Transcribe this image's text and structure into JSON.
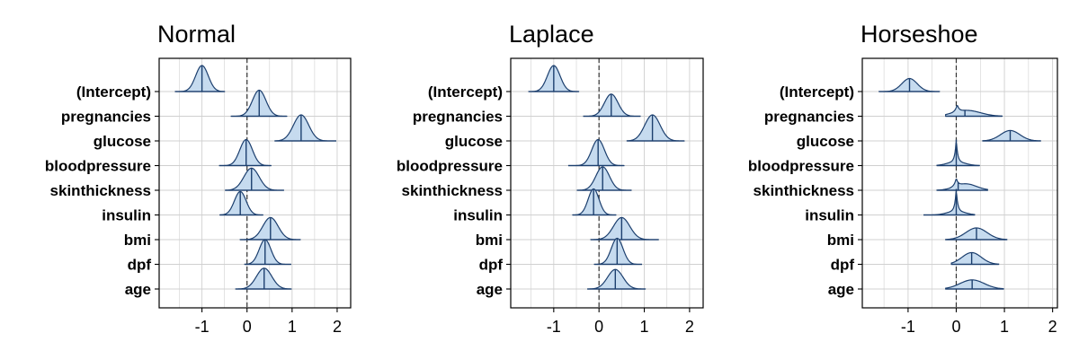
{
  "chart_data": [
    {
      "type": "area",
      "subtype": "ridgeline",
      "title": "Normal",
      "categories": [
        "(Intercept)",
        "pregnancies",
        "glucose",
        "bloodpressure",
        "skinthickness",
        "insulin",
        "bmi",
        "dpf",
        "age"
      ],
      "x_ticks": [
        "-1",
        "0",
        "1",
        "2"
      ],
      "xlim": [
        -1.95,
        2.3
      ],
      "reference_line_x": 0,
      "grid": true,
      "series": [
        {
          "category": "(Intercept)",
          "center": -1.0,
          "spread": 0.14,
          "range": [
            -1.6,
            -0.5
          ],
          "height": 1.0
        },
        {
          "category": "pregnancies",
          "center": 0.27,
          "spread": 0.15,
          "range": [
            -0.35,
            0.88
          ],
          "height": 1.0
        },
        {
          "category": "glucose",
          "center": 1.2,
          "spread": 0.17,
          "range": [
            0.62,
            1.98
          ],
          "height": 1.0
        },
        {
          "category": "bloodpressure",
          "center": -0.02,
          "spread": 0.14,
          "range": [
            -0.62,
            0.53
          ],
          "height": 1.0
        },
        {
          "category": "skinthickness",
          "center": 0.1,
          "spread": 0.17,
          "range": [
            -0.48,
            0.82
          ],
          "height": 0.85
        },
        {
          "category": "insulin",
          "center": -0.15,
          "spread": 0.13,
          "range": [
            -0.6,
            0.35
          ],
          "height": 0.9
        },
        {
          "category": "bmi",
          "center": 0.52,
          "spread": 0.17,
          "range": [
            -0.15,
            1.18
          ],
          "height": 0.85
        },
        {
          "category": "dpf",
          "center": 0.4,
          "spread": 0.13,
          "range": [
            -0.05,
            0.98
          ],
          "height": 0.95
        },
        {
          "category": "age",
          "center": 0.38,
          "spread": 0.17,
          "range": [
            -0.25,
            0.98
          ],
          "height": 0.8
        }
      ]
    },
    {
      "type": "area",
      "subtype": "ridgeline",
      "title": "Laplace",
      "categories": [
        "(Intercept)",
        "pregnancies",
        "glucose",
        "bloodpressure",
        "skinthickness",
        "insulin",
        "bmi",
        "dpf",
        "age"
      ],
      "x_ticks": [
        "-1",
        "0",
        "1",
        "2"
      ],
      "xlim": [
        -1.95,
        2.3
      ],
      "reference_line_x": 0,
      "grid": true,
      "series": [
        {
          "category": "(Intercept)",
          "center": -1.0,
          "spread": 0.14,
          "range": [
            -1.55,
            -0.45
          ],
          "height": 1.0
        },
        {
          "category": "pregnancies",
          "center": 0.27,
          "spread": 0.15,
          "range": [
            -0.35,
            0.92
          ],
          "height": 0.85
        },
        {
          "category": "glucose",
          "center": 1.18,
          "spread": 0.17,
          "range": [
            0.62,
            1.88
          ],
          "height": 1.0
        },
        {
          "category": "bloodpressure",
          "center": -0.02,
          "spread": 0.14,
          "range": [
            -0.68,
            0.55
          ],
          "height": 1.0
        },
        {
          "category": "skinthickness",
          "center": 0.08,
          "spread": 0.15,
          "range": [
            -0.48,
            0.72
          ],
          "height": 0.9
        },
        {
          "category": "insulin",
          "center": -0.12,
          "spread": 0.12,
          "range": [
            -0.58,
            0.38
          ],
          "height": 1.0
        },
        {
          "category": "bmi",
          "center": 0.5,
          "spread": 0.18,
          "range": [
            -0.18,
            1.32
          ],
          "height": 0.85
        },
        {
          "category": "dpf",
          "center": 0.4,
          "spread": 0.13,
          "range": [
            -0.1,
            0.95
          ],
          "height": 1.0
        },
        {
          "category": "age",
          "center": 0.36,
          "spread": 0.17,
          "range": [
            -0.25,
            1.02
          ],
          "height": 0.75
        }
      ]
    },
    {
      "type": "area",
      "subtype": "ridgeline",
      "title": "Horseshoe",
      "categories": [
        "(Intercept)",
        "pregnancies",
        "glucose",
        "bloodpressure",
        "skinthickness",
        "insulin",
        "bmi",
        "dpf",
        "age"
      ],
      "x_ticks": [
        "-1",
        "0",
        "1",
        "2"
      ],
      "xlim": [
        -1.95,
        2.1
      ],
      "reference_line_x": 0,
      "grid": true,
      "series": [
        {
          "category": "(Intercept)",
          "center": -0.97,
          "spread": 0.16,
          "range": [
            -1.6,
            -0.35
          ],
          "height": 0.5,
          "shape": "normal"
        },
        {
          "category": "pregnancies",
          "center": 0.02,
          "spread": 0.28,
          "range": [
            -0.22,
            0.95
          ],
          "height": 0.5,
          "shape": "shrink",
          "median": 0.18
        },
        {
          "category": "glucose",
          "center": 1.12,
          "spread": 0.2,
          "range": [
            0.55,
            1.75
          ],
          "height": 0.4,
          "shape": "normal"
        },
        {
          "category": "bloodpressure",
          "center": 0.0,
          "spread": 0.03,
          "range": [
            -0.4,
            0.48
          ],
          "height": 1.0,
          "shape": "spike"
        },
        {
          "category": "skinthickness",
          "center": 0.0,
          "spread": 0.22,
          "range": [
            -0.4,
            0.65
          ],
          "height": 0.55,
          "shape": "shrink",
          "median": 0.04
        },
        {
          "category": "insulin",
          "center": 0.0,
          "spread": 0.03,
          "range": [
            -0.68,
            0.38
          ],
          "height": 1.0,
          "shape": "spike"
        },
        {
          "category": "bmi",
          "center": 0.42,
          "spread": 0.22,
          "range": [
            -0.22,
            1.05
          ],
          "height": 0.45,
          "shape": "normal"
        },
        {
          "category": "dpf",
          "center": 0.32,
          "spread": 0.2,
          "range": [
            -0.1,
            0.88
          ],
          "height": 0.45,
          "shape": "normal"
        },
        {
          "category": "age",
          "center": 0.33,
          "spread": 0.25,
          "range": [
            -0.22,
            0.98
          ],
          "height": 0.35,
          "shape": "normal"
        }
      ]
    }
  ],
  "colors": {
    "fill": "#c6dbef",
    "outline": "#1c3f6e",
    "grid": "#d0d0d0",
    "refline": "#333333",
    "frame": "#000000"
  }
}
